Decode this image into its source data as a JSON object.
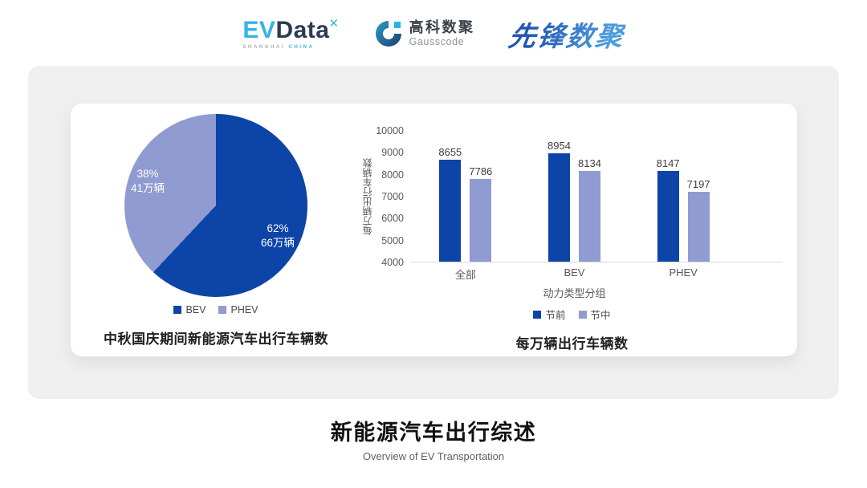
{
  "header": {
    "evdata_logo": {
      "ev": "EV",
      "data": "Data",
      "mark": "✕",
      "subtext_shanghai": "SHANGHAI",
      "subtext_china": "CHINA",
      "color_cyan": "#36b3e6",
      "color_navy": "#2c3a52"
    },
    "gausscode_logo": {
      "name_cn": "高科数聚",
      "name_en": "Gausscode"
    },
    "xianfeng_logo": {
      "text": "先锋数聚",
      "color": "#2e70c8"
    }
  },
  "chart_data": [
    {
      "type": "pie",
      "title": "中秋国庆期间新能源汽车出行车辆数",
      "start_angle": "top",
      "direction": "clockwise",
      "legend_position": "bottom",
      "slices": [
        {
          "label": "BEV",
          "percent": 62,
          "percent_label": "62%",
          "amount": "66万辆",
          "color": "#0d44a8"
        },
        {
          "label": "PHEV",
          "percent": 38,
          "percent_label": "38%",
          "amount": "41万辆",
          "color": "#909bd2"
        }
      ]
    },
    {
      "type": "bar",
      "title": "每万辆出行车辆数",
      "categories": [
        "全部",
        "BEV",
        "PHEV"
      ],
      "series": [
        {
          "name": "节前",
          "color": "#0d44a8",
          "values": [
            8655,
            8954,
            8147
          ]
        },
        {
          "name": "节中",
          "color": "#909bd2",
          "values": [
            7786,
            8134,
            7197
          ]
        }
      ],
      "ylabel": "每万辆出行车辆数",
      "xlabel": "动力类型分组",
      "ylim": [
        4000,
        10000
      ],
      "ytick_step": 1000,
      "grid": false,
      "legend_position": "bottom"
    }
  ],
  "footer": {
    "title": "新能源汽车出行综述",
    "subtitle": "Overview of EV Transportation"
  }
}
